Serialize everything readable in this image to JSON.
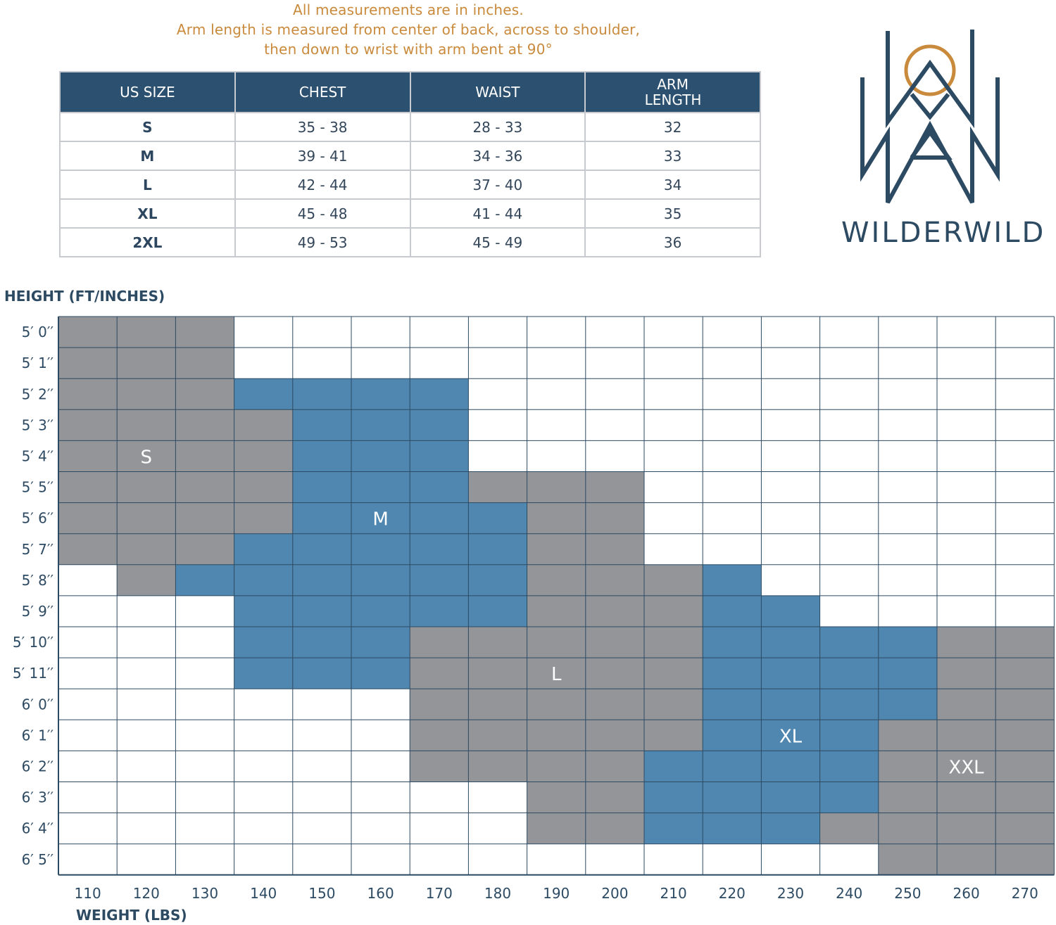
{
  "notes": {
    "line1": "All measurements are in inches.",
    "line2": "Arm length is measured from center of back, across to shoulder,",
    "line3": "then down to wrist with arm bent at 90°"
  },
  "size_table": {
    "headers": [
      "US SIZE",
      "CHEST",
      "WAIST",
      "ARM LENGTH"
    ],
    "rows": [
      [
        "S",
        "35 - 38",
        "28 - 33",
        "32"
      ],
      [
        "M",
        "39 - 41",
        "34 - 36",
        "33"
      ],
      [
        "L",
        "42 - 44",
        "37 - 40",
        "34"
      ],
      [
        "XL",
        "45 - 48",
        "41 - 44",
        "35"
      ],
      [
        "2XL",
        "49 - 53",
        "45 - 49",
        "36"
      ]
    ]
  },
  "brand": {
    "name": "WILDERWILD",
    "colors": {
      "navy": "#2d4a63",
      "orange": "#c98a3c"
    }
  },
  "colors": {
    "gray_region": "#939598",
    "blue_region": "#4f87b0",
    "grid": "#2d4a63",
    "header": "#2c5070"
  },
  "chart_data": {
    "type": "heatmap",
    "ylabel": "HEIGHT (FT/INCHES)",
    "xlabel": "WEIGHT (LBS)",
    "x": [
      110,
      120,
      130,
      140,
      150,
      160,
      170,
      180,
      190,
      200,
      210,
      220,
      230,
      240,
      250,
      260,
      270
    ],
    "y": [
      "5′ 0′′",
      "5′ 1′′",
      "5′ 2′′",
      "5′ 3′′",
      "5′ 4′′",
      "5′ 5′′",
      "5′ 6′′",
      "5′ 7′′",
      "5′ 8′′",
      "5′ 9′′",
      "5′ 10′′",
      "5′ 11′′",
      "6′ 0′′",
      "6′ 1′′",
      "6′ 2′′",
      "6′ 3′′",
      "6′ 4′′",
      "6′ 5′′"
    ],
    "cells": [
      [
        "S",
        "S",
        "S",
        "",
        "",
        "",
        "",
        "",
        "",
        "",
        "",
        "",
        "",
        "",
        "",
        "",
        ""
      ],
      [
        "S",
        "S",
        "S",
        "",
        "",
        "",
        "",
        "",
        "",
        "",
        "",
        "",
        "",
        "",
        "",
        "",
        ""
      ],
      [
        "S",
        "S",
        "S",
        "M",
        "M",
        "M",
        "M",
        "",
        "",
        "",
        "",
        "",
        "",
        "",
        "",
        "",
        ""
      ],
      [
        "S",
        "S",
        "S",
        "S",
        "M",
        "M",
        "M",
        "",
        "",
        "",
        "",
        "",
        "",
        "",
        "",
        "",
        ""
      ],
      [
        "S",
        "S",
        "S",
        "S",
        "M",
        "M",
        "M",
        "",
        "",
        "",
        "",
        "",
        "",
        "",
        "",
        "",
        ""
      ],
      [
        "S",
        "S",
        "S",
        "S",
        "M",
        "M",
        "M",
        "L",
        "L",
        "L",
        "",
        "",
        "",
        "",
        "",
        "",
        ""
      ],
      [
        "S",
        "S",
        "S",
        "S",
        "M",
        "M",
        "M",
        "M",
        "L",
        "L",
        "",
        "",
        "",
        "",
        "",
        "",
        ""
      ],
      [
        "S",
        "S",
        "S",
        "M",
        "M",
        "M",
        "M",
        "M",
        "L",
        "L",
        "",
        "",
        "",
        "",
        "",
        "",
        ""
      ],
      [
        "",
        "S",
        "M",
        "M",
        "M",
        "M",
        "M",
        "M",
        "L",
        "L",
        "L",
        "XL",
        "",
        "",
        "",
        "",
        ""
      ],
      [
        "",
        "",
        "",
        "M",
        "M",
        "M",
        "M",
        "M",
        "L",
        "L",
        "L",
        "XL",
        "XL",
        "",
        "",
        "",
        ""
      ],
      [
        "",
        "",
        "",
        "M",
        "M",
        "M",
        "L",
        "L",
        "L",
        "L",
        "L",
        "XL",
        "XL",
        "XL",
        "XL",
        "XXL",
        "XXL"
      ],
      [
        "",
        "",
        "",
        "M",
        "M",
        "M",
        "L",
        "L",
        "L",
        "L",
        "L",
        "XL",
        "XL",
        "XL",
        "XL",
        "XXL",
        "XXL"
      ],
      [
        "",
        "",
        "",
        "",
        "",
        "",
        "L",
        "L",
        "L",
        "L",
        "L",
        "XL",
        "XL",
        "XL",
        "XL",
        "XXL",
        "XXL"
      ],
      [
        "",
        "",
        "",
        "",
        "",
        "",
        "L",
        "L",
        "L",
        "L",
        "L",
        "XL",
        "XL",
        "XL",
        "XXL",
        "XXL",
        "XXL"
      ],
      [
        "",
        "",
        "",
        "",
        "",
        "",
        "L",
        "L",
        "L",
        "L",
        "XL",
        "XL",
        "XL",
        "XL",
        "XXL",
        "XXL",
        "XXL"
      ],
      [
        "",
        "",
        "",
        "",
        "",
        "",
        "",
        "",
        "L",
        "L",
        "XL",
        "XL",
        "XL",
        "XL",
        "XXL",
        "XXL",
        "XXL"
      ],
      [
        "",
        "",
        "",
        "",
        "",
        "",
        "",
        "",
        "L",
        "L",
        "XL",
        "XL",
        "XL",
        "L",
        "XXL",
        "XXL",
        "XXL"
      ],
      [
        "",
        "",
        "",
        "",
        "",
        "",
        "",
        "",
        "",
        "",
        "",
        "",
        "",
        "",
        "XXL",
        "XXL",
        "XXL"
      ]
    ],
    "region_colors": {
      "S": "gray",
      "M": "blue",
      "L": "gray",
      "XL": "blue",
      "XXL": "gray"
    },
    "region_labels": [
      {
        "label": "S",
        "x": 120,
        "y": "5′ 4′′"
      },
      {
        "label": "M",
        "x": 160,
        "y": "5′ 6′′"
      },
      {
        "label": "L",
        "x": 190,
        "y": "5′ 11′′"
      },
      {
        "label": "XL",
        "x": 230,
        "y": "6′ 1′′"
      },
      {
        "label": "XXL",
        "x": 260,
        "y": "6′ 2′′"
      }
    ]
  }
}
